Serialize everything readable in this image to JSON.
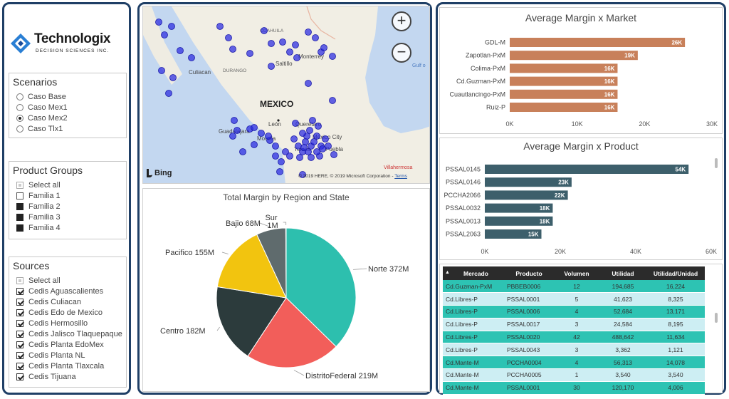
{
  "brand": {
    "name": "Technologix",
    "tagline": "DECISION SCIENCES INC."
  },
  "colors": {
    "frame": "#1f3f66",
    "bar_market": "#c8805a",
    "bar_product": "#3d5f6b",
    "row_teal": "#2dc3b3",
    "row_light": "#cdeef3",
    "map_dot": "#2a2ae0"
  },
  "scenarios": {
    "title": "Scenarios",
    "items": [
      {
        "label": "Caso Base",
        "selected": false
      },
      {
        "label": "Caso Mex1",
        "selected": false
      },
      {
        "label": "Caso Mex2",
        "selected": true
      },
      {
        "label": "Caso Tlx1",
        "selected": false
      }
    ]
  },
  "product_groups": {
    "title": "Product Groups",
    "items": [
      {
        "label": "Select all",
        "state": "partial"
      },
      {
        "label": "Familia 1",
        "state": "empty"
      },
      {
        "label": "Familia 2",
        "state": "filled"
      },
      {
        "label": "Familia 3",
        "state": "filled"
      },
      {
        "label": "Familia 4",
        "state": "filled"
      }
    ]
  },
  "sources": {
    "title": "Sources",
    "items": [
      {
        "label": "Select all",
        "state": "partial"
      },
      {
        "label": "Cedis Aguascalientes",
        "state": "checked"
      },
      {
        "label": "Cedis Culiacan",
        "state": "checked"
      },
      {
        "label": "Cedis Edo de Mexico",
        "state": "checked"
      },
      {
        "label": "Cedis Hermosillo",
        "state": "checked"
      },
      {
        "label": "Cedis Jalisco Tlaquepaque",
        "state": "checked"
      },
      {
        "label": "Cedis Planta EdoMex",
        "state": "checked"
      },
      {
        "label": "Cedis Planta NL",
        "state": "checked"
      },
      {
        "label": "Cedis Planta Tlaxcala",
        "state": "checked"
      },
      {
        "label": "Cedis Tijuana",
        "state": "checked"
      }
    ]
  },
  "map": {
    "labels": {
      "mexico": "MEXICO",
      "coahuila": "COAHUILA",
      "monterrey": "Monterrey",
      "saltillo": "Saltillo",
      "culiacan": "Culiacan",
      "durango": "DURANGO",
      "leon": "León",
      "queretaro": "Querétaro",
      "guadalajara": "Guadalajara",
      "morelia": "Morelia",
      "mexico_city": "México City",
      "toluca": "Toluca",
      "puebla": "Puebla",
      "villahermosa": "Villahermosa",
      "gulf": "Gulf o"
    },
    "provider": "Bing",
    "copyright": "© 2019 HERE, © 2019 Microsoft Corporation",
    "terms": "Terms",
    "zoom_in": "+",
    "zoom_out": "−"
  },
  "chart_data": [
    {
      "type": "pie",
      "title": "Total Margin by Region and State",
      "slices": [
        {
          "label": "Norte",
          "value": 372,
          "display": "Norte 372M",
          "color": "#2dbfae"
        },
        {
          "label": "DistritoFederal",
          "value": 219,
          "display": "DistritoFederal 219M",
          "color": "#f25e5a"
        },
        {
          "label": "Centro",
          "value": 182,
          "display": "Centro 182M",
          "color": "#2c3b3c"
        },
        {
          "label": "Pacifico",
          "value": 155,
          "display": "Pacifico 155M",
          "color": "#f2c40f"
        },
        {
          "label": "Bajio",
          "value": 68,
          "display": "Bajio 68M",
          "color": "#5f6b6d"
        },
        {
          "label": "Sur",
          "value": 1,
          "display_line1": "Sur",
          "display_line2": "1M",
          "color": "#d4d4d4"
        }
      ]
    },
    {
      "type": "bar",
      "orientation": "horizontal",
      "title": "Average Margin x Market",
      "categories": [
        "GDL-M",
        "Zapotlan-PxM",
        "Colima-PxM",
        "Cd.Guzman-PxM",
        "Cuautlancingo-PxM",
        "Ruiz-P"
      ],
      "values": [
        26000,
        19000,
        16000,
        16000,
        16000,
        16000
      ],
      "data_labels": [
        "26K",
        "19K",
        "16K",
        "16K",
        "16K",
        "16K"
      ],
      "xlim": [
        0,
        30000
      ],
      "xticks": [
        "0K",
        "10K",
        "20K",
        "30K"
      ]
    },
    {
      "type": "bar",
      "orientation": "horizontal",
      "title": "Average Margin x Product",
      "categories": [
        "PSSAL0145",
        "PSSAL0146",
        "PCCHA2066",
        "PSSAL0032",
        "PSSAL0013",
        "PSSAL2063"
      ],
      "values": [
        54000,
        23000,
        22000,
        18000,
        18000,
        15000
      ],
      "data_labels": [
        "54K",
        "23K",
        "22K",
        "18K",
        "18K",
        "15K"
      ],
      "xlim": [
        0,
        60000
      ],
      "xticks": [
        "0K",
        "20K",
        "40K",
        "60K"
      ]
    }
  ],
  "table": {
    "columns": [
      "Mercado",
      "Producto",
      "Volumen",
      "Utilidad",
      "Utilidad/Unidad"
    ],
    "rows": [
      [
        "Cd.Guzman-PxM",
        "PBBEB0006",
        "12",
        "194,685",
        "16,224"
      ],
      [
        "Cd.Libres-P",
        "PSSAL0001",
        "5",
        "41,623",
        "8,325"
      ],
      [
        "Cd.Libres-P",
        "PSSAL0006",
        "4",
        "52,684",
        "13,171"
      ],
      [
        "Cd.Libres-P",
        "PSSAL0017",
        "3",
        "24,584",
        "8,195"
      ],
      [
        "Cd.Libres-P",
        "PSSAL0020",
        "42",
        "488,642",
        "11,634"
      ],
      [
        "Cd.Libres-P",
        "PSSAL0043",
        "3",
        "3,362",
        "1,121"
      ],
      [
        "Cd.Mante-M",
        "PCCHA0004",
        "4",
        "56,313",
        "14,078"
      ],
      [
        "Cd.Mante-M",
        "PCCHA0005",
        "1",
        "3,540",
        "3,540"
      ],
      [
        "Cd.Mante-M",
        "PSSAL0001",
        "30",
        "120,170",
        "4,006"
      ]
    ]
  }
}
